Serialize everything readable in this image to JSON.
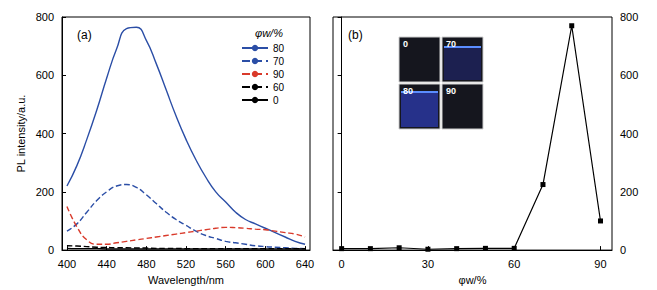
{
  "chart_data": [
    {
      "type": "line",
      "title": "(a)",
      "x_label": "Wavelength/nm",
      "y_label": "PL intensity/a.u.",
      "annotations": [
        "φw/%"
      ],
      "legend": "upper right",
      "grid": false,
      "xlim": [
        395,
        645
      ],
      "xticks": [
        400,
        440,
        480,
        520,
        560,
        600,
        640
      ],
      "ylim": [
        0,
        800
      ],
      "yticks": [
        0,
        200,
        400,
        600,
        800
      ],
      "x": [
        400,
        410,
        420,
        430,
        440,
        450,
        460,
        470,
        480,
        490,
        500,
        510,
        520,
        530,
        540,
        550,
        560,
        570,
        580,
        590,
        600,
        610,
        620,
        630,
        640
      ],
      "series": [
        {
          "name": "80",
          "color": "#2b4ea6",
          "line_style": "solid",
          "values": [
            220,
            290,
            380,
            480,
            590,
            690,
            760,
            765,
            720,
            640,
            550,
            460,
            380,
            310,
            250,
            200,
            165,
            130,
            105,
            90,
            75,
            60,
            45,
            30,
            20
          ]
        },
        {
          "name": "70",
          "color": "#2b4ea6",
          "line_style": "dashed",
          "values": [
            65,
            90,
            130,
            170,
            200,
            220,
            225,
            215,
            190,
            160,
            130,
            105,
            85,
            65,
            50,
            40,
            30,
            25,
            20,
            15,
            12,
            10,
            8,
            6,
            5
          ]
        },
        {
          "name": "90",
          "color": "#d93a2b",
          "line_style": "dashed",
          "values": [
            150,
            80,
            35,
            20,
            20,
            25,
            30,
            35,
            40,
            45,
            50,
            55,
            60,
            65,
            70,
            75,
            78,
            77,
            75,
            72,
            70,
            65,
            60,
            55,
            45
          ]
        },
        {
          "name": "60",
          "color": "#000000",
          "line_style": "dashed",
          "values": [
            15,
            14,
            12,
            10,
            9,
            8,
            8,
            7,
            7,
            6,
            6,
            6,
            5,
            5,
            5,
            5,
            5,
            5,
            5,
            5,
            5,
            5,
            5,
            5,
            5
          ]
        },
        {
          "name": "0",
          "color": "#000000",
          "line_style": "solid",
          "values": [
            6,
            5,
            5,
            5,
            4,
            4,
            4,
            4,
            4,
            4,
            4,
            4,
            4,
            4,
            4,
            4,
            4,
            4,
            4,
            4,
            4,
            4,
            4,
            4,
            4
          ]
        }
      ]
    },
    {
      "type": "line",
      "title": "(b)",
      "x_label": "φw/%",
      "annotations": [
        "0",
        "70",
        "80",
        "90"
      ],
      "grid": false,
      "tick_labels": true,
      "marker": "square",
      "color": "#000000",
      "xlim": [
        -3,
        94
      ],
      "xticks": [
        0,
        30,
        60,
        90
      ],
      "ylim": [
        0,
        800
      ],
      "yticks": [
        0,
        200,
        400,
        600,
        800
      ],
      "x": [
        0,
        10,
        20,
        30,
        40,
        50,
        60,
        70,
        80,
        90
      ],
      "values": [
        5,
        5,
        8,
        3,
        5,
        6,
        6,
        225,
        770,
        100
      ]
    }
  ]
}
